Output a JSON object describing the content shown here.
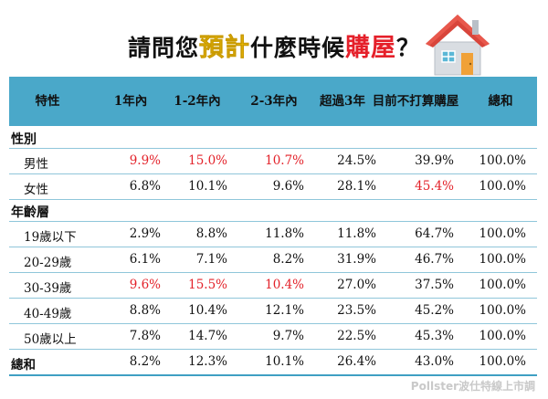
{
  "title": {
    "before": "請問您",
    "hl1": "預計",
    "mid": "什麼時候",
    "hl2": "購屋",
    "after": "？"
  },
  "columns": [
    "特性",
    "1年內",
    "1-2年內",
    "2-3年內",
    "超過3年",
    "目前不打算購屋",
    "總和"
  ],
  "columns_wrapped": {
    "5": [
      "目前不打算",
      "購屋"
    ]
  },
  "sections": [
    {
      "label": "性別",
      "rows": [
        {
          "label": "男性",
          "values": [
            "9.9%",
            "15.0%",
            "10.7%",
            "24.5%",
            "39.9%",
            "100.0%"
          ],
          "red": [
            0,
            1,
            2
          ]
        },
        {
          "label": "女性",
          "values": [
            "6.8%",
            "10.1%",
            "9.6%",
            "28.1%",
            "45.4%",
            "100.0%"
          ],
          "red": [
            4
          ]
        }
      ]
    },
    {
      "label": "年齡層",
      "rows": [
        {
          "label": "19歲以下",
          "values": [
            "2.9%",
            "8.8%",
            "11.8%",
            "11.8%",
            "64.7%",
            "100.0%"
          ],
          "red": []
        },
        {
          "label": "20-29歲",
          "values": [
            "6.1%",
            "7.1%",
            "8.2%",
            "31.9%",
            "46.7%",
            "100.0%"
          ],
          "red": []
        },
        {
          "label": "30-39歲",
          "values": [
            "9.6%",
            "15.5%",
            "10.4%",
            "27.0%",
            "37.5%",
            "100.0%"
          ],
          "red": [
            0,
            1,
            2
          ]
        },
        {
          "label": "40-49歲",
          "values": [
            "8.8%",
            "10.4%",
            "12.1%",
            "23.5%",
            "45.2%",
            "100.0%"
          ],
          "red": []
        },
        {
          "label": "50歲以上",
          "values": [
            "7.8%",
            "14.7%",
            "9.7%",
            "22.5%",
            "45.3%",
            "100.0%"
          ],
          "red": []
        }
      ]
    }
  ],
  "total_row": {
    "label": "總和",
    "values": [
      "8.2%",
      "12.3%",
      "10.1%",
      "26.4%",
      "43.0%",
      "100.0%"
    ]
  },
  "footer": "Pollster波仕特線上市調",
  "colors": {
    "header_bg": "#4aa8c9",
    "highlight_red": "#e3222a",
    "title_yellow": "#f6c400"
  },
  "icons": [
    "house-icon"
  ]
}
